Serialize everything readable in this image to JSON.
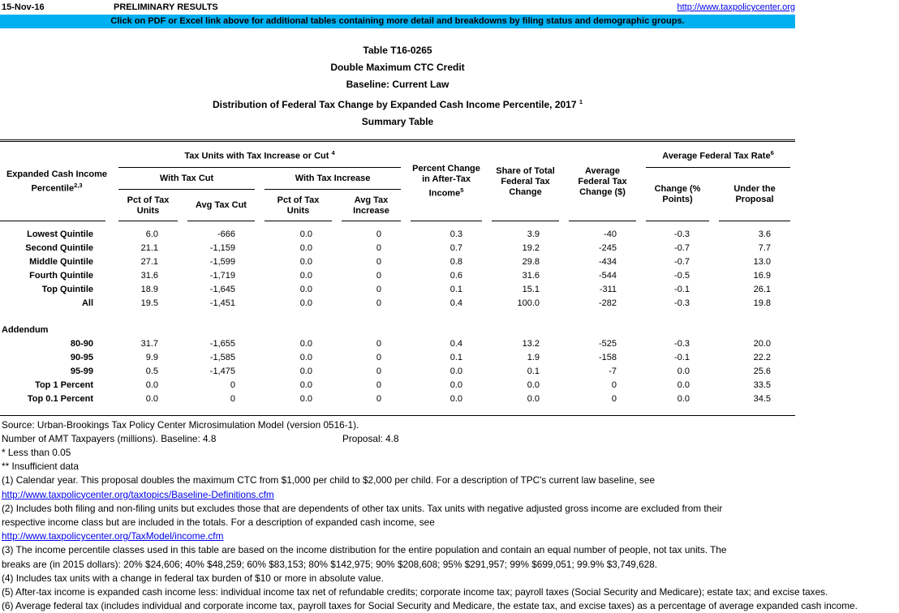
{
  "topbar": {
    "date": "15-Nov-16",
    "status": "PRELIMINARY RESULTS",
    "url": "http://www.taxpolicycenter.org"
  },
  "banner": {
    "text": "Click on PDF or Excel link above for additional tables containing more detail and breakdowns by filing status and demographic groups.",
    "bg_color": "#00B0F0"
  },
  "title": {
    "line1": "Table T16-0265",
    "line2": "Double Maximum CTC Credit",
    "line3": "Baseline: Current Law",
    "line4": "Distribution of Federal Tax Change by Expanded Cash Income Percentile, 2017",
    "line4_sup": "1",
    "line5": "Summary Table"
  },
  "table": {
    "headers": {
      "row_label": "Expanded Cash Income Percentile",
      "row_label_sup": "2,3",
      "group_tax_units": "Tax Units with Tax Increase or Cut",
      "group_tax_units_sup": "4",
      "with_tax_cut": "With Tax Cut",
      "with_tax_increase": "With Tax Increase",
      "pct_of_tax_units_cut": "Pct of Tax Units",
      "avg_tax_cut": "Avg Tax Cut",
      "pct_of_tax_units_inc": "Pct of Tax Units",
      "avg_tax_increase": "Avg Tax Increase",
      "pct_change_after_tax": "Percent Change in After-Tax Income",
      "pct_change_after_tax_sup": "5",
      "share_of_total": "Share of Total Federal Tax Change",
      "avg_fed_tax_change": "Average Federal Tax Change ($)",
      "avg_fed_tax_rate": "Average Federal Tax Rate",
      "avg_fed_tax_rate_sup": "6",
      "change_points": "Change (% Points)",
      "under_proposal": "Under the Proposal"
    },
    "rows": [
      {
        "label": "Lowest Quintile",
        "values": [
          "6.0",
          "-666",
          "0.0",
          "0",
          "0.3",
          "3.9",
          "-40",
          "-0.3",
          "3.6"
        ]
      },
      {
        "label": "Second Quintile",
        "values": [
          "21.1",
          "-1,159",
          "0.0",
          "0",
          "0.7",
          "19.2",
          "-245",
          "-0.7",
          "7.7"
        ]
      },
      {
        "label": "Middle Quintile",
        "values": [
          "27.1",
          "-1,599",
          "0.0",
          "0",
          "0.8",
          "29.8",
          "-434",
          "-0.7",
          "13.0"
        ]
      },
      {
        "label": "Fourth Quintile",
        "values": [
          "31.6",
          "-1,719",
          "0.0",
          "0",
          "0.6",
          "31.6",
          "-544",
          "-0.5",
          "16.9"
        ]
      },
      {
        "label": "Top Quintile",
        "values": [
          "18.9",
          "-1,645",
          "0.0",
          "0",
          "0.1",
          "15.1",
          "-311",
          "-0.1",
          "26.1"
        ]
      },
      {
        "label": "All",
        "values": [
          "19.5",
          "-1,451",
          "0.0",
          "0",
          "0.4",
          "100.0",
          "-282",
          "-0.3",
          "19.8"
        ]
      }
    ],
    "addendum_label": "Addendum",
    "addendum_rows": [
      {
        "label": "80-90",
        "values": [
          "31.7",
          "-1,655",
          "0.0",
          "0",
          "0.4",
          "13.2",
          "-525",
          "-0.3",
          "20.0"
        ]
      },
      {
        "label": "90-95",
        "values": [
          "9.9",
          "-1,585",
          "0.0",
          "0",
          "0.1",
          "1.9",
          "-158",
          "-0.1",
          "22.2"
        ]
      },
      {
        "label": "95-99",
        "values": [
          "0.5",
          "-1,475",
          "0.0",
          "0",
          "0.0",
          "0.1",
          "-7",
          "0.0",
          "25.6"
        ]
      },
      {
        "label": "Top 1 Percent",
        "values": [
          "0.0",
          "0",
          "0.0",
          "0",
          "0.0",
          "0.0",
          "0",
          "0.0",
          "33.5"
        ]
      },
      {
        "label": "Top 0.1 Percent",
        "values": [
          "0.0",
          "0",
          "0.0",
          "0",
          "0.0",
          "0.0",
          "0",
          "0.0",
          "34.5"
        ]
      }
    ]
  },
  "footer": {
    "source": "Source: Urban-Brookings Tax Policy Center Microsimulation Model (version 0516-1).",
    "amt_baseline": "Number of AMT Taxpayers (millions).  Baseline: 4.8",
    "amt_proposal": "Proposal: 4.8",
    "less_than": "* Less than 0.05",
    "insufficient": "** Insufficient data",
    "notes": [
      {
        "type": "text",
        "text": "(1) Calendar year. This proposal doubles the maximum CTC from $1,000 per child to $2,000 per child. For a description of TPC's current law baseline, see"
      },
      {
        "type": "link",
        "text": "http://www.taxpolicycenter.org/taxtopics/Baseline-Definitions.cfm"
      },
      {
        "type": "text",
        "text": "(2) Includes both filing and non-filing units but excludes those that are dependents of other tax units. Tax units with negative adjusted gross income are excluded from their"
      },
      {
        "type": "text",
        "text": "respective income class but are included in the totals. For a description of expanded cash income, see"
      },
      {
        "type": "link",
        "text": "http://www.taxpolicycenter.org/TaxModel/income.cfm"
      },
      {
        "type": "text",
        "text": "(3) The income percentile classes used in this table are based on the income distribution for the entire population and contain an equal number of people, not tax units. The"
      },
      {
        "type": "text",
        "text": "breaks are (in 2015 dollars): 20% $24,606; 40% $48,259; 60% $83,153; 80% $142,975; 90% $208,608; 95% $291,957; 99% $699,051; 99.9% $3,749,628."
      },
      {
        "type": "text",
        "text": "(4) Includes tax units with a change in federal tax burden of $10 or more in absolute value."
      },
      {
        "type": "text",
        "text": "(5) After-tax income is expanded cash income less: individual income tax net of refundable credits; corporate income tax; payroll taxes (Social Security and Medicare); estate tax; and excise taxes."
      },
      {
        "type": "text",
        "text": "(6) Average federal tax (includes individual and corporate income tax, payroll taxes for Social Security and Medicare, the estate tax, and excise taxes) as a percentage of average expanded cash income."
      }
    ]
  }
}
